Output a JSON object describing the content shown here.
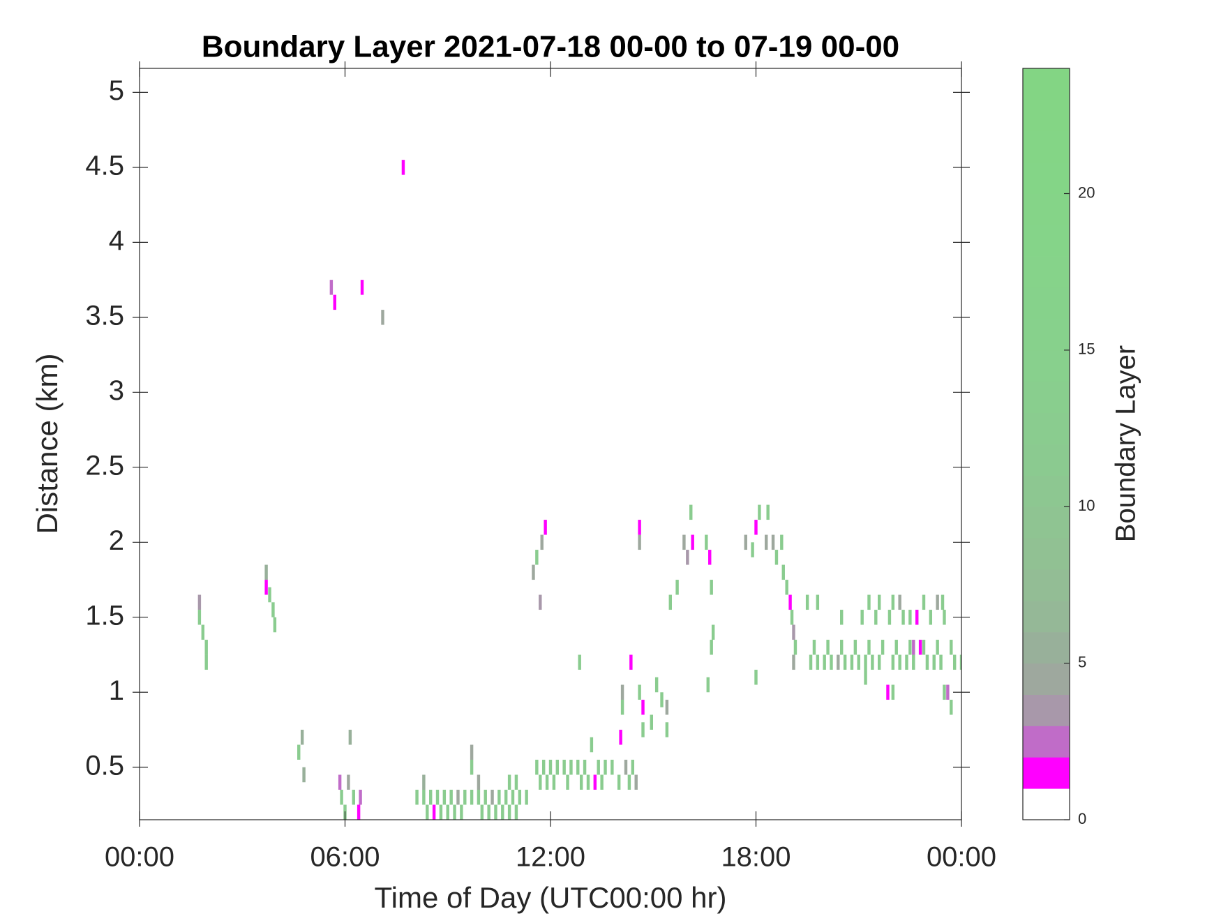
{
  "chart_data": {
    "type": "heatmap",
    "title": "Boundary Layer 2021-07-18 00-00 to 07-19 00-00",
    "x_label": "Time of Day (UTC00:00 hr)",
    "y_label": "Distance (km)",
    "colorbar_label": "Boundary Layer",
    "xlim": [
      0,
      24
    ],
    "xticks": [
      {
        "value": 0,
        "label": "00:00"
      },
      {
        "value": 6,
        "label": "06:00"
      },
      {
        "value": 12,
        "label": "12:00"
      },
      {
        "value": 18,
        "label": "18:00"
      },
      {
        "value": 24,
        "label": "00:00"
      }
    ],
    "ylim": [
      0.15,
      5.16
    ],
    "yticks": [
      0.5,
      1,
      1.5,
      2,
      2.5,
      3,
      3.5,
      4,
      4.5,
      5
    ],
    "clim": [
      0,
      24
    ],
    "cticks": [
      0,
      5,
      10,
      15,
      20
    ],
    "colormap": [
      "#ffffff",
      "#ff00ff",
      "#c06cc8",
      "#a898aa",
      "#9ea89e",
      "#98b09a",
      "#95b897",
      "#93bd95",
      "#91c193",
      "#8fc492",
      "#8dc791",
      "#8bca90",
      "#8acc8f",
      "#89ce8e",
      "#88d08d",
      "#87d18c",
      "#86d28b",
      "#86d38a",
      "#85d489",
      "#85d488",
      "#84d587",
      "#84d586",
      "#84d585",
      "#83d584"
    ],
    "x": [
      1.75,
      1.75,
      1.85,
      1.95,
      1.95,
      3.7,
      3.7,
      3.8,
      3.9,
      3.95,
      5.6,
      5.7,
      6.5,
      7.1,
      7.7,
      4.65,
      4.75,
      4.8,
      6.15,
      5.85,
      5.9,
      6.0,
      6.1,
      6.25,
      6.4,
      6.45,
      8.1,
      8.3,
      8.5,
      8.7,
      8.9,
      9.1,
      9.3,
      9.5,
      9.7,
      9.9,
      10.1,
      10.3,
      10.5,
      10.7,
      10.9,
      11.1,
      11.3,
      8.4,
      8.6,
      8.8,
      9.0,
      9.2,
      9.4,
      10.0,
      10.2,
      10.4,
      10.6,
      10.8,
      11.0,
      8.3,
      9.7,
      9.7,
      9.9,
      10.8,
      11.0,
      11.6,
      11.8,
      12.0,
      12.2,
      12.4,
      12.6,
      12.8,
      13.0,
      13.4,
      13.6,
      13.8,
      14.2,
      14.4,
      11.7,
      11.9,
      12.1,
      12.5,
      12.9,
      13.1,
      13.5,
      14.0,
      14.3,
      14.5,
      13.3,
      12.85,
      13.2,
      14.05,
      14.1,
      14.1,
      11.5,
      11.6,
      11.75,
      11.85,
      11.7,
      14.35,
      14.6,
      14.7,
      14.7,
      14.95,
      15.1,
      15.25,
      15.4,
      15.4,
      14.6,
      14.6,
      15.5,
      15.7,
      15.9,
      16.0,
      16.1,
      16.15,
      16.55,
      16.65,
      16.7,
      16.75,
      16.7,
      16.6,
      17.7,
      17.9,
      18.0,
      18.0,
      18.1,
      18.3,
      18.35,
      18.5,
      18.6,
      18.75,
      18.8,
      18.9,
      19.0,
      19.05,
      19.1,
      19.15,
      19.1,
      19.6,
      19.8,
      20.0,
      20.2,
      20.4,
      20.6,
      20.8,
      21.0,
      21.2,
      21.4,
      21.6,
      22.0,
      22.2,
      22.4,
      22.6,
      23.0,
      23.2,
      23.4,
      23.8,
      24.0,
      19.7,
      20.1,
      20.5,
      20.9,
      21.3,
      21.7,
      22.1,
      22.5,
      22.9,
      23.3,
      23.7,
      20.5,
      21.1,
      21.5,
      21.9,
      22.3,
      22.5,
      22.7,
      23.1,
      23.5,
      19.5,
      19.8,
      21.3,
      21.6,
      22.0,
      22.2,
      22.9,
      23.3,
      23.45,
      21.85,
      22.6,
      22.7,
      22.8,
      23.6,
      23.7,
      23.5,
      22.0,
      21.2
    ],
    "y": [
      1.6,
      1.5,
      1.4,
      1.3,
      1.2,
      1.8,
      1.7,
      1.65,
      1.55,
      1.45,
      3.7,
      3.6,
      3.7,
      3.5,
      4.5,
      0.6,
      0.7,
      0.45,
      0.7,
      0.4,
      0.3,
      0.2,
      0.4,
      0.3,
      0.2,
      0.3,
      0.3,
      0.3,
      0.3,
      0.3,
      0.3,
      0.3,
      0.3,
      0.3,
      0.3,
      0.3,
      0.3,
      0.3,
      0.3,
      0.3,
      0.3,
      0.3,
      0.3,
      0.2,
      0.2,
      0.2,
      0.2,
      0.2,
      0.2,
      0.2,
      0.2,
      0.2,
      0.2,
      0.2,
      0.2,
      0.4,
      0.6,
      0.5,
      0.4,
      0.4,
      0.4,
      0.5,
      0.5,
      0.5,
      0.5,
      0.5,
      0.5,
      0.5,
      0.5,
      0.5,
      0.5,
      0.5,
      0.5,
      0.5,
      0.4,
      0.4,
      0.4,
      0.4,
      0.4,
      0.4,
      0.4,
      0.4,
      0.4,
      0.4,
      0.4,
      1.2,
      0.65,
      0.7,
      0.9,
      1.0,
      1.8,
      1.9,
      2.0,
      2.1,
      1.6,
      1.2,
      1.0,
      0.9,
      0.75,
      0.8,
      1.05,
      0.95,
      0.9,
      0.75,
      2.1,
      2.0,
      1.6,
      1.7,
      2.0,
      1.9,
      2.2,
      2.0,
      2.0,
      1.9,
      1.7,
      1.4,
      1.3,
      1.05,
      2.0,
      1.95,
      2.1,
      1.1,
      2.2,
      2.0,
      2.2,
      2.0,
      1.9,
      2.0,
      1.8,
      1.7,
      1.6,
      1.5,
      1.4,
      1.3,
      1.2,
      1.2,
      1.2,
      1.2,
      1.2,
      1.2,
      1.2,
      1.2,
      1.2,
      1.2,
      1.2,
      1.2,
      1.2,
      1.2,
      1.2,
      1.2,
      1.2,
      1.2,
      1.2,
      1.2,
      1.2,
      1.3,
      1.3,
      1.3,
      1.3,
      1.3,
      1.3,
      1.3,
      1.3,
      1.3,
      1.3,
      1.3,
      1.5,
      1.5,
      1.5,
      1.5,
      1.5,
      1.5,
      1.5,
      1.5,
      1.5,
      1.6,
      1.6,
      1.6,
      1.6,
      1.6,
      1.6,
      1.6,
      1.6,
      1.6,
      1.0,
      1.3,
      1.5,
      1.3,
      1.0,
      0.9,
      1.0,
      1.0,
      1.1
    ],
    "values": [
      3,
      12,
      12,
      12,
      12,
      5,
      1.5,
      12,
      12,
      12,
      2,
      1.5,
      1.5,
      4,
      1.5,
      12,
      5,
      5,
      5,
      2,
      12,
      12,
      4,
      12,
      1.5,
      2,
      12,
      12,
      12,
      12,
      12,
      12,
      4,
      12,
      12,
      12,
      12,
      4,
      12,
      12,
      12,
      12,
      12,
      12,
      1.5,
      12,
      12,
      12,
      12,
      12,
      12,
      12,
      12,
      12,
      12,
      5,
      4,
      12,
      4,
      12,
      12,
      12,
      12,
      12,
      12,
      12,
      12,
      12,
      12,
      12,
      12,
      12,
      4,
      12,
      12,
      12,
      12,
      12,
      12,
      12,
      12,
      12,
      12,
      4,
      1.5,
      12,
      12,
      1.5,
      12,
      4,
      4,
      12,
      4,
      1.5,
      3,
      1.5,
      12,
      1.5,
      12,
      12,
      12,
      12,
      4,
      12,
      1.5,
      4,
      12,
      12,
      4,
      3,
      12,
      1.5,
      12,
      1.5,
      12,
      12,
      12,
      12,
      4,
      12,
      1.5,
      12,
      12,
      4,
      12,
      4,
      12,
      12,
      12,
      12,
      1.5,
      12,
      3,
      12,
      4,
      12,
      12,
      12,
      12,
      4,
      12,
      12,
      12,
      12,
      12,
      12,
      12,
      12,
      12,
      12,
      12,
      12,
      12,
      12,
      12,
      12,
      12,
      12,
      12,
      12,
      12,
      12,
      12,
      12,
      12,
      12,
      12,
      12,
      12,
      12,
      12,
      12,
      12,
      12,
      12,
      12,
      12,
      12,
      12,
      12,
      4,
      12,
      4,
      12,
      1.5,
      2,
      1.5,
      1.5,
      2,
      12,
      12,
      12,
      12
    ]
  }
}
